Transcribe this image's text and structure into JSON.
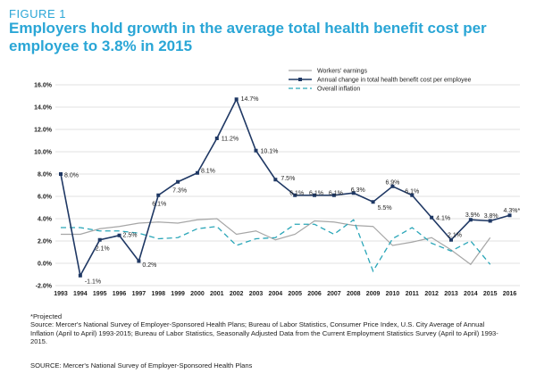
{
  "header": {
    "figure_label": "FIGURE 1",
    "title": "Employers hold growth in the average total health benefit cost per employee to 3.8% in 2015"
  },
  "notes": {
    "projected": "*Projected",
    "source": "Source: Mercer's National Survey of Employer-Sponsored Health Plans; Bureau of Labor Statistics, Consumer Price Index, U.S. City Average of Annual Inflation (April to April) 1993-2015; Bureau of Labor Statistics, Seasonally Adjusted Data from the Current Employment Statistics Survey (April to April) 1993-2015.",
    "source_footer": "SOURCE: Mercer's National Survey of Employer-Sponsored Health Plans"
  },
  "chart_data": {
    "type": "line",
    "x": [
      1993,
      1994,
      1995,
      1996,
      1997,
      1998,
      1999,
      2000,
      2001,
      2002,
      2003,
      2004,
      2005,
      2006,
      2007,
      2008,
      2009,
      2010,
      2011,
      2012,
      2013,
      2014,
      2015,
      2016
    ],
    "ylim": [
      -2.0,
      16.0
    ],
    "yticks": [
      "-2.0%",
      "0.0%",
      "2.0%",
      "4.0%",
      "6.0%",
      "8.0%",
      "10.0%",
      "12.0%",
      "14.0%",
      "16.0%"
    ],
    "grid": "horizontal",
    "legend_position": "top-right",
    "series": [
      {
        "name": "Workers' earnings",
        "color": "#a6a6a6",
        "style": "solid",
        "values": [
          2.6,
          2.6,
          3.1,
          3.3,
          3.6,
          3.7,
          3.6,
          3.9,
          4.0,
          2.6,
          2.9,
          2.1,
          2.6,
          3.8,
          3.7,
          3.4,
          3.3,
          1.6,
          1.9,
          2.3,
          1.2,
          -0.1,
          2.3,
          null
        ]
      },
      {
        "name": "Annual change in total health benefit cost per employee",
        "color": "#1f3864",
        "style": "solid-markers",
        "values": [
          8.0,
          -1.1,
          2.1,
          2.5,
          0.2,
          6.1,
          7.3,
          8.1,
          11.2,
          14.7,
          10.1,
          7.5,
          6.1,
          6.1,
          6.1,
          6.3,
          5.5,
          6.9,
          6.1,
          4.1,
          2.1,
          3.9,
          3.8,
          4.3
        ],
        "labels": [
          "8.0%",
          "-1.1%",
          "2.1%",
          "2.5%",
          "0.2%",
          "6.1%",
          "7.3%",
          "8.1%",
          "11.2%",
          "14.7%",
          "10.1%",
          "7.5%",
          "6.1%",
          "6.1%",
          "6.1%",
          "6.3%",
          "5.5%",
          "6.9%",
          "6.1%",
          "4.1%",
          "2.1%",
          "3.9%",
          "3.8%",
          "4.3%*"
        ]
      },
      {
        "name": "Overall inflation",
        "color": "#2aa6b8",
        "style": "dashed",
        "values": [
          3.2,
          3.2,
          2.9,
          2.9,
          2.7,
          2.2,
          2.3,
          3.1,
          3.3,
          1.6,
          2.2,
          2.3,
          3.5,
          3.5,
          2.6,
          3.9,
          -0.7,
          2.2,
          3.2,
          1.8,
          1.1,
          2.0,
          -0.1,
          null
        ]
      }
    ]
  }
}
